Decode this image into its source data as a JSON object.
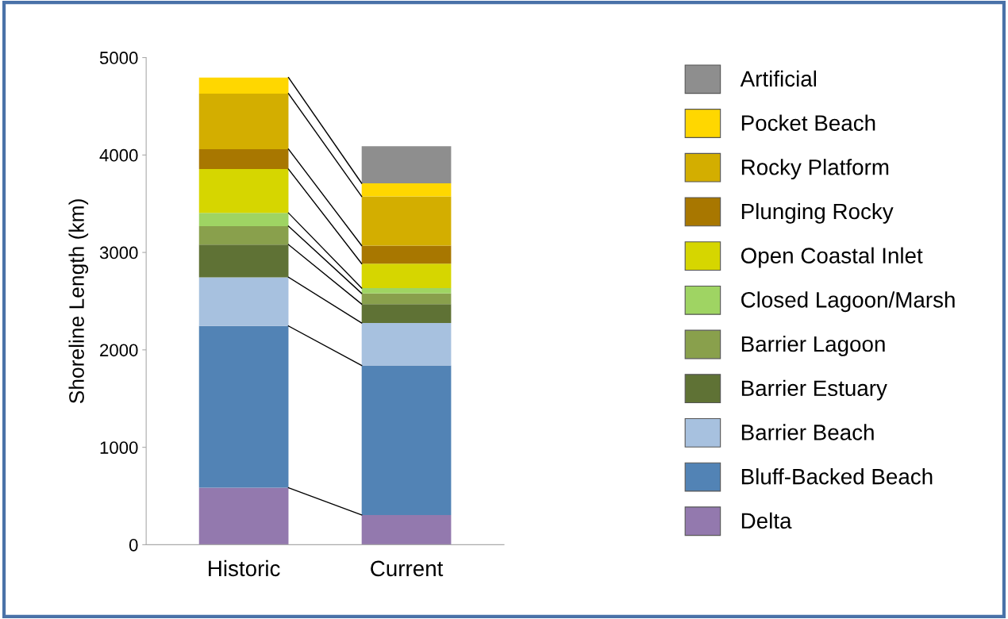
{
  "chart_data": {
    "type": "bar",
    "stacked": true,
    "ylabel": "Shoreline Length (km)",
    "categories": [
      "Historic",
      "Current"
    ],
    "ylim": [
      0,
      5000
    ],
    "yticks": [
      0,
      1000,
      2000,
      3000,
      4000,
      5000
    ],
    "grid": false,
    "legend": "right",
    "series": [
      {
        "name": "Delta",
        "color": "#9379ae",
        "values": [
          585,
          305
        ]
      },
      {
        "name": "Bluff-Backed Beach",
        "color": "#5283b5",
        "values": [
          1660,
          1535
        ]
      },
      {
        "name": "Barrier Beach",
        "color": "#a7c1df",
        "values": [
          500,
          435
        ]
      },
      {
        "name": "Barrier Estuary",
        "color": "#5f7235",
        "values": [
          335,
          195
        ]
      },
      {
        "name": "Barrier Lagoon",
        "color": "#89a04c",
        "values": [
          190,
          110
        ]
      },
      {
        "name": "Closed Lagoon/Marsh",
        "color": "#9fd463",
        "values": [
          135,
          55
        ]
      },
      {
        "name": "Open Coastal Inlet",
        "color": "#d6d600",
        "values": [
          450,
          250
        ]
      },
      {
        "name": "Plunging Rocky",
        "color": "#a87700",
        "values": [
          205,
          185
        ]
      },
      {
        "name": "Rocky Platform",
        "color": "#d3ae00",
        "values": [
          570,
          505
        ]
      },
      {
        "name": "Pocket Beach",
        "color": "#ffd700",
        "values": [
          165,
          135
        ]
      },
      {
        "name": "Artificial",
        "color": "#8e8e8e",
        "values": [
          0,
          380
        ]
      }
    ]
  }
}
